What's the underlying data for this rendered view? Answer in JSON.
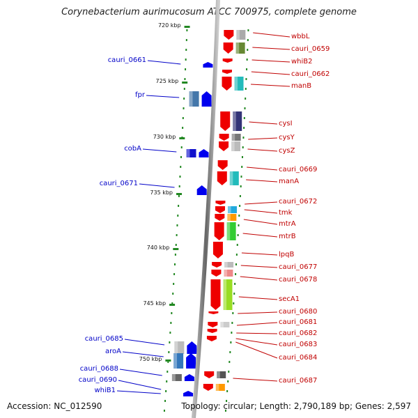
{
  "title": "Corynebacterium aurimucosum ATCC 700975, complete genome",
  "footer": {
    "accession": "Accession: NC_012590",
    "topology": "Topology: circular; Length: 2,790,189 bp; Genes: 2,597"
  },
  "colors": {
    "forward_strand": "#ee0000",
    "reverse_strand": "#0000ee",
    "backbone": "#888888",
    "ticks": "#228822",
    "right_label": "#c00000",
    "left_label": "#0000c8"
  },
  "ticks": [
    {
      "text": "720 kbp"
    },
    {
      "text": "725 kbp"
    },
    {
      "text": "730 kbp"
    },
    {
      "text": "735 kbp"
    },
    {
      "text": "740 kbp"
    },
    {
      "text": "745 kbp"
    },
    {
      "text": "750 kbp"
    }
  ],
  "right_genes": [
    {
      "label": "wbbL"
    },
    {
      "label": "cauri_0659"
    },
    {
      "label": "whiB2"
    },
    {
      "label": "cauri_0662"
    },
    {
      "label": "manB"
    },
    {
      "label": "cysI"
    },
    {
      "label": "cysY"
    },
    {
      "label": "cysZ"
    },
    {
      "label": "cauri_0669"
    },
    {
      "label": "manA"
    },
    {
      "label": "cauri_0672"
    },
    {
      "label": "tmk"
    },
    {
      "label": "mtrA"
    },
    {
      "label": "mtrB"
    },
    {
      "label": "lpqB"
    },
    {
      "label": "cauri_0677"
    },
    {
      "label": "cauri_0678"
    },
    {
      "label": "secA1"
    },
    {
      "label": "cauri_0680"
    },
    {
      "label": "cauri_0681"
    },
    {
      "label": "cauri_0682"
    },
    {
      "label": "cauri_0683"
    },
    {
      "label": "cauri_0684"
    },
    {
      "label": "cauri_0687"
    }
  ],
  "left_genes": [
    {
      "label": "cauri_0661"
    },
    {
      "label": "fpr"
    },
    {
      "label": "cobA"
    },
    {
      "label": "cauri_0671"
    },
    {
      "label": "cauri_0685"
    },
    {
      "label": "aroA"
    },
    {
      "label": "cauri_0688"
    },
    {
      "label": "cauri_0690"
    },
    {
      "label": "whiB1"
    }
  ]
}
